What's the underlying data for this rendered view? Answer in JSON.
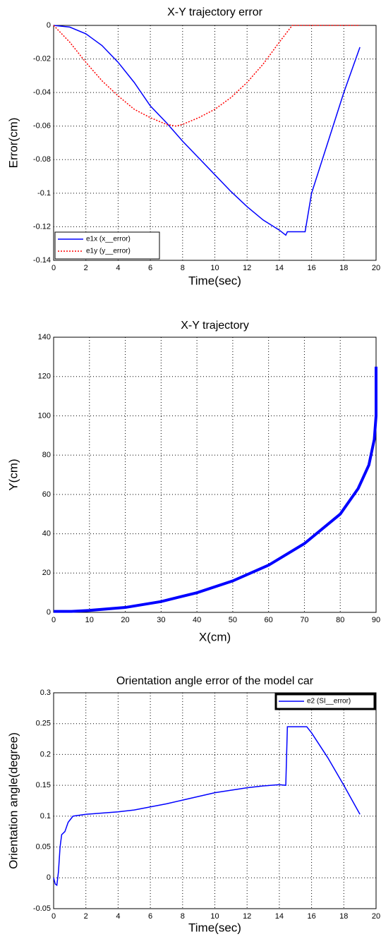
{
  "chart_data": [
    {
      "type": "line",
      "title": "X-Y trajectory error",
      "xlabel": "Time(sec)",
      "ylabel": "Error(cm)",
      "xlim": [
        0,
        20
      ],
      "xticks": [
        0,
        2,
        4,
        6,
        8,
        10,
        12,
        14,
        16,
        18,
        20
      ],
      "ylim": [
        -0.14,
        0
      ],
      "yticks": [
        0,
        -0.02,
        -0.04,
        -0.06,
        -0.08,
        -0.1,
        -0.12,
        -0.14
      ],
      "grid": true,
      "legend": "lower left",
      "series": [
        {
          "name": "e1x (x__error)",
          "color": "#0000ff",
          "style": "solid",
          "x": [
            0,
            1,
            2,
            3,
            4,
            5,
            6,
            7,
            8,
            9,
            10,
            11,
            12,
            13,
            14,
            14.4,
            14.5,
            15.6,
            16,
            17,
            18,
            19
          ],
          "values": [
            0,
            -0.001,
            -0.005,
            -0.012,
            -0.022,
            -0.034,
            -0.048,
            -0.058,
            -0.069,
            -0.079,
            -0.089,
            -0.099,
            -0.108,
            -0.116,
            -0.122,
            -0.125,
            -0.123,
            -0.123,
            -0.1,
            -0.07,
            -0.04,
            -0.013
          ]
        },
        {
          "name": "e1y (y__error)",
          "color": "#ff0000",
          "style": "dotted",
          "x": [
            0,
            1,
            2,
            3,
            4,
            5,
            6,
            7,
            7.6,
            8,
            9,
            10,
            11,
            12,
            13,
            14,
            14.8,
            19
          ],
          "values": [
            0,
            -0.01,
            -0.022,
            -0.033,
            -0.042,
            -0.05,
            -0.055,
            -0.059,
            -0.06,
            -0.059,
            -0.055,
            -0.05,
            -0.043,
            -0.034,
            -0.023,
            -0.01,
            0,
            0
          ]
        }
      ]
    },
    {
      "type": "line",
      "title": "X-Y trajectory",
      "xlabel": "X(cm)",
      "ylabel": "Y(cm)",
      "xlim": [
        0,
        90
      ],
      "xticks": [
        0,
        10,
        20,
        30,
        40,
        50,
        60,
        70,
        80,
        90
      ],
      "ylim": [
        0,
        140
      ],
      "yticks": [
        0,
        20,
        40,
        60,
        80,
        100,
        120,
        140
      ],
      "grid": true,
      "series": [
        {
          "color": "#0000ff",
          "style": "solid",
          "x": [
            0,
            5,
            10,
            20,
            30,
            40,
            50,
            60,
            70,
            80,
            85,
            88,
            89.5,
            90,
            90
          ],
          "values": [
            0.5,
            0.5,
            1,
            2.5,
            5.5,
            10,
            16,
            24,
            35,
            50,
            63,
            75,
            88,
            100,
            125
          ]
        }
      ]
    },
    {
      "type": "line",
      "title": "Orientation angle error of the model car",
      "xlabel": "Time(sec)",
      "ylabel": "Orientation angle(degree)",
      "xlim": [
        0,
        20
      ],
      "xticks": [
        0,
        2,
        4,
        6,
        8,
        10,
        12,
        14,
        16,
        18,
        20
      ],
      "ylim": [
        -0.05,
        0.3
      ],
      "yticks": [
        0.3,
        0.25,
        0.2,
        0.15,
        0.1,
        0.05,
        0,
        -0.05
      ],
      "grid": true,
      "legend": "upper right",
      "series": [
        {
          "name": "e2 (SI__error)",
          "color": "#0000ff",
          "style": "solid",
          "x": [
            0,
            0.1,
            0.2,
            0.3,
            0.4,
            0.5,
            0.7,
            0.9,
            1.2,
            2,
            3,
            4,
            5,
            6,
            7,
            8,
            9,
            10,
            11,
            12,
            13,
            14,
            14.4,
            14.5,
            15.7,
            16,
            17,
            18,
            19
          ],
          "values": [
            0,
            -0.01,
            -0.012,
            0.01,
            0.05,
            0.07,
            0.075,
            0.09,
            0.1,
            0.103,
            0.105,
            0.107,
            0.11,
            0.115,
            0.12,
            0.126,
            0.132,
            0.138,
            0.142,
            0.146,
            0.149,
            0.151,
            0.15,
            0.245,
            0.245,
            0.235,
            0.195,
            0.15,
            0.103
          ]
        }
      ]
    }
  ]
}
